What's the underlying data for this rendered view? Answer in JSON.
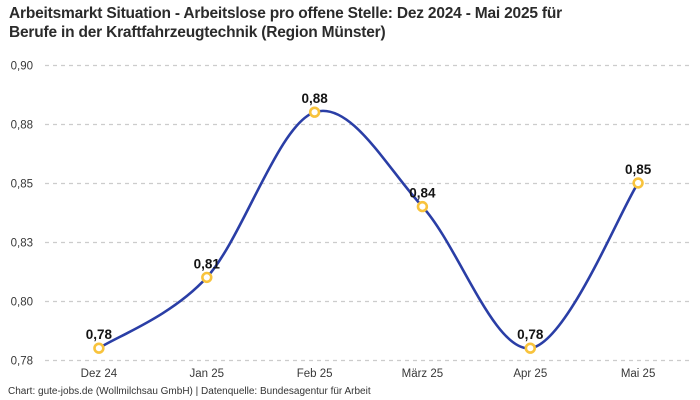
{
  "header": {
    "title_lines": [
      "Arbeitsmarkt Situation - Arbeitslose pro offene Stelle: Dez 2024 - Mai 2025 für",
      "Berufe in der Kraftfahrzeugtechnik (Region Münster)"
    ]
  },
  "footer": {
    "text": "Chart: gute-jobs.de (Wollmilchsau GmbH) | Datenquelle: Bundesagentur für Arbeit"
  },
  "chart_data": {
    "type": "line",
    "title": "Arbeitsmarkt Situation - Arbeitslose pro offene Stelle: Dez 2024 - Mai 2025 für Berufe in der Kraftfahrzeugtechnik (Region Münster)",
    "categories": [
      "Dez 24",
      "Jan 25",
      "Feb 25",
      "März 25",
      "Apr 25",
      "Mai 25"
    ],
    "values": [
      0.78,
      0.81,
      0.88,
      0.84,
      0.78,
      0.85
    ],
    "value_labels": [
      "0,78",
      "0,81",
      "0,88",
      "0,84",
      "0,78",
      "0,85"
    ],
    "xlabel": "",
    "ylabel": "",
    "ylim": [
      0.775,
      0.9
    ],
    "yticks": [
      {
        "value": 0.775,
        "label": "0,78"
      },
      {
        "value": 0.8,
        "label": "0,80"
      },
      {
        "value": 0.825,
        "label": "0,83"
      },
      {
        "value": 0.85,
        "label": "0,85"
      },
      {
        "value": 0.875,
        "label": "0,88"
      },
      {
        "value": 0.9,
        "label": "0,90"
      }
    ],
    "grid": "horizontal-dashed",
    "legend_position": "none",
    "line_style": "smooth",
    "colors": {
      "line": "#2a3ea6",
      "marker_stroke": "#f8c33c",
      "marker_fill": "#ffffff",
      "grid": "#cccccc",
      "tick_label": "#383838",
      "point_label": "#141414",
      "title": "#2b2b2b"
    }
  }
}
